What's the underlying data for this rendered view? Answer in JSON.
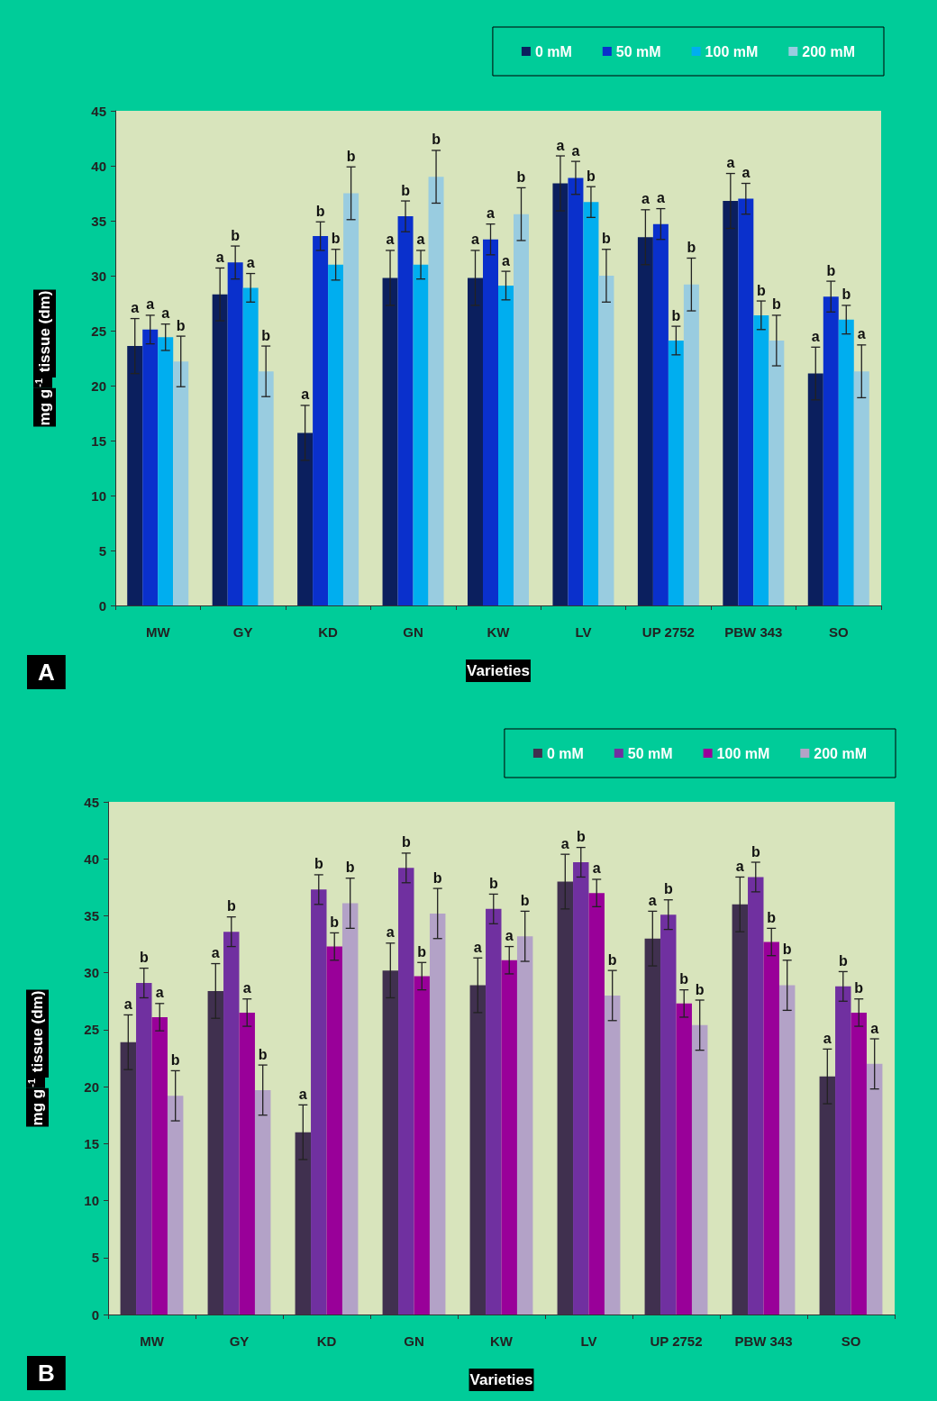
{
  "chart_data": [
    {
      "type": "bar",
      "ylabel": "mg g$^{-1}$ tissue (dm)",
      "xlabel": "Varieties",
      "annotations": [
        "A"
      ],
      "legend": "top right",
      "grid": false,
      "ylim": [
        0,
        45
      ],
      "yticks": [
        0,
        5,
        10,
        15,
        20,
        25,
        30,
        35,
        40,
        45
      ],
      "categories": [
        "MW",
        "GY",
        "KD",
        "GN",
        "KW",
        "LV",
        "UP 2752",
        "PBW 343",
        "SO"
      ],
      "series": [
        {
          "name": "0 mM",
          "color": "#0b1f5e",
          "values": [
            23.6,
            28.3,
            15.7,
            29.8,
            29.8,
            38.4,
            33.5,
            36.8,
            21.1
          ],
          "errors": [
            2.5,
            2.4,
            2.5,
            2.5,
            2.5,
            2.5,
            2.5,
            2.5,
            2.4
          ],
          "value_labels": [
            "a",
            "a",
            "a",
            "a",
            "a",
            "a",
            "a",
            "a",
            "a"
          ]
        },
        {
          "name": "50 mM",
          "color": "#0a30cc",
          "values": [
            25.1,
            31.2,
            33.6,
            35.4,
            33.3,
            38.9,
            34.7,
            37.0,
            28.1
          ],
          "errors": [
            1.3,
            1.5,
            1.3,
            1.4,
            1.4,
            1.5,
            1.4,
            1.4,
            1.4
          ],
          "value_labels": [
            "a",
            "b",
            "b",
            "b",
            "a",
            "a",
            "a",
            "a",
            "b"
          ]
        },
        {
          "name": "100 mM",
          "color": "#00aeef",
          "values": [
            24.4,
            28.9,
            31.0,
            31.0,
            29.1,
            36.7,
            24.1,
            26.4,
            26.0
          ],
          "errors": [
            1.2,
            1.3,
            1.4,
            1.3,
            1.3,
            1.4,
            1.3,
            1.3,
            1.3
          ],
          "value_labels": [
            "a",
            "a",
            "b",
            "a",
            "a",
            "b",
            "b",
            "b",
            "b"
          ]
        },
        {
          "name": "200 mM",
          "color": "#99cce0",
          "values": [
            22.2,
            21.3,
            37.5,
            39.0,
            35.6,
            30.0,
            29.2,
            24.1,
            21.3
          ],
          "errors": [
            2.3,
            2.3,
            2.4,
            2.4,
            2.4,
            2.4,
            2.4,
            2.3,
            2.4
          ],
          "value_labels": [
            "b",
            "b",
            "b",
            "b",
            "b",
            "b",
            "b",
            "b",
            "a"
          ]
        }
      ]
    },
    {
      "type": "bar",
      "ylabel": "mg g$^{-1}$ tissue (dm)",
      "xlabel": "Varieties",
      "annotations": [
        "B"
      ],
      "legend": "top right",
      "grid": false,
      "ylim": [
        0,
        45
      ],
      "yticks": [
        0,
        5,
        10,
        15,
        20,
        25,
        30,
        35,
        40,
        45
      ],
      "categories": [
        "MW",
        "GY",
        "KD",
        "GN",
        "KW",
        "LV",
        "UP 2752",
        "PBW 343",
        "SO"
      ],
      "series": [
        {
          "name": "0 mM",
          "color": "#40304f",
          "values": [
            23.9,
            28.4,
            16.0,
            30.2,
            28.9,
            38.0,
            33.0,
            36.0,
            20.9
          ],
          "errors": [
            2.4,
            2.4,
            2.4,
            2.4,
            2.4,
            2.4,
            2.4,
            2.4,
            2.4
          ],
          "value_labels": [
            "a",
            "a",
            "a",
            "a",
            "a",
            "a",
            "a",
            "a",
            "a"
          ]
        },
        {
          "name": "50 mM",
          "color": "#7030a0",
          "values": [
            29.1,
            33.6,
            37.3,
            39.2,
            35.6,
            39.7,
            35.1,
            38.4,
            28.8
          ],
          "errors": [
            1.3,
            1.3,
            1.3,
            1.3,
            1.3,
            1.3,
            1.3,
            1.3,
            1.3
          ],
          "value_labels": [
            "b",
            "b",
            "b",
            "b",
            "b",
            "b",
            "b",
            "b",
            "b"
          ]
        },
        {
          "name": "100 mM",
          "color": "#990099",
          "values": [
            26.1,
            26.5,
            32.3,
            29.7,
            31.1,
            37.0,
            27.3,
            32.7,
            26.5
          ],
          "errors": [
            1.2,
            1.2,
            1.2,
            1.2,
            1.2,
            1.2,
            1.2,
            1.2,
            1.2
          ],
          "value_labels": [
            "a",
            "a",
            "b",
            "b",
            "a",
            "a",
            "b",
            "b",
            "b"
          ]
        },
        {
          "name": "200 mM",
          "color": "#b3a2c7",
          "values": [
            19.2,
            19.7,
            36.1,
            35.2,
            33.2,
            28.0,
            25.4,
            28.9,
            22.0
          ],
          "errors": [
            2.2,
            2.2,
            2.2,
            2.2,
            2.2,
            2.2,
            2.2,
            2.2,
            2.2
          ],
          "value_labels": [
            "b",
            "b",
            "b",
            "b",
            "b",
            "b",
            "b",
            "b",
            "a"
          ]
        }
      ]
    }
  ]
}
